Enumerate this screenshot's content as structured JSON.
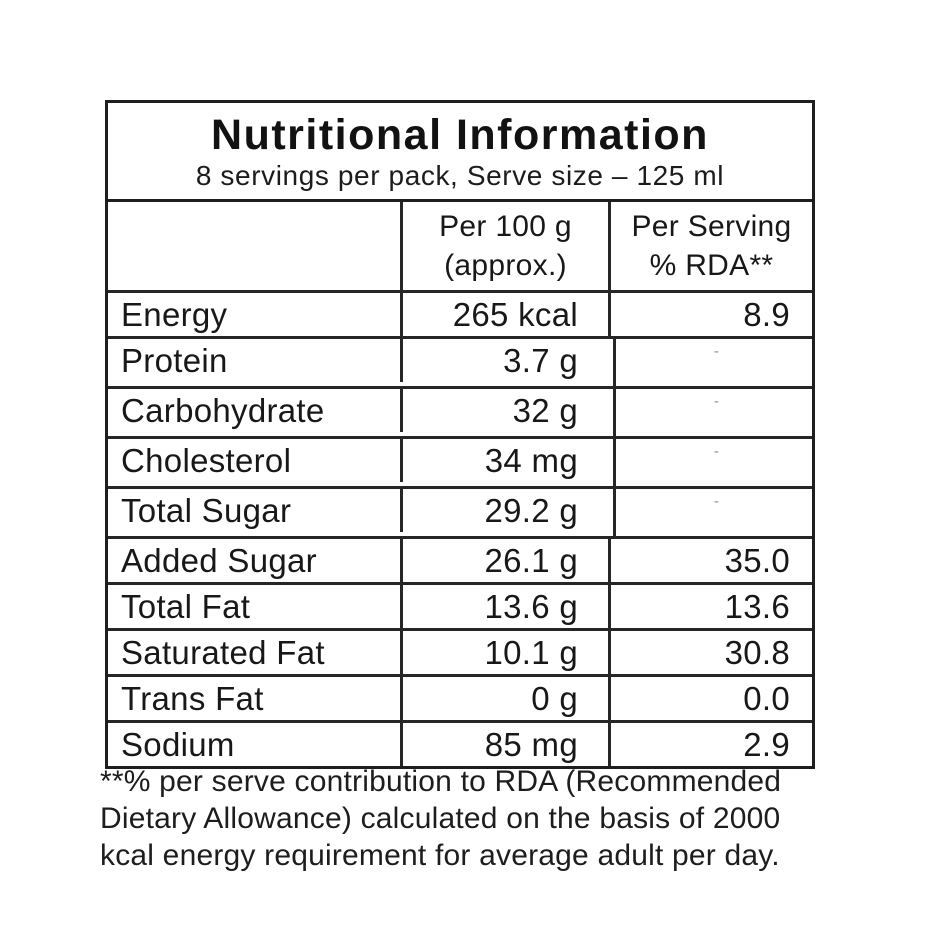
{
  "header": {
    "title": "Nutritional Information",
    "subtitle": "8 servings per pack, Serve size – 125 ml"
  },
  "table": {
    "columns": {
      "col2_line1": "Per 100 g",
      "col2_line2": "(approx.)",
      "col3_line1": "Per Serving",
      "col3_line2": "% RDA**"
    },
    "rows": [
      {
        "label": "Energy",
        "per100": "265 kcal",
        "rda": "8.9"
      },
      {
        "label": "Protein",
        "per100": "3.7 g",
        "rda": "-",
        "rda_muted": true
      },
      {
        "label": "Carbohydrate",
        "per100": "32 g",
        "rda": "-",
        "rda_muted": true
      },
      {
        "label": "Cholesterol",
        "per100": "34 mg",
        "rda": "-",
        "rda_muted": true
      },
      {
        "label": "Total Sugar",
        "per100": "29.2 g",
        "rda": "-",
        "rda_muted": true
      },
      {
        "label": "Added Sugar",
        "per100": "26.1 g",
        "rda": "35.0"
      },
      {
        "label": "Total Fat",
        "per100": "13.6 g",
        "rda": "13.6"
      },
      {
        "label": "Saturated Fat",
        "per100": "10.1 g",
        "rda": "30.8"
      },
      {
        "label": "Trans Fat",
        "per100": "0 g",
        "rda": "0.0"
      },
      {
        "label": "Sodium",
        "per100": "85 mg",
        "rda": "2.9"
      }
    ]
  },
  "footnote": {
    "line1": "**% per serve contribution to RDA (Recommended",
    "line2": "Dietary Allowance) calculated on the basis of 2000",
    "line3": "kcal energy requirement for average adult per day."
  },
  "colors": {
    "border": "#1e1e1e",
    "text": "#181818",
    "muted_dash": "#8e8e8e",
    "background": "#ffffff"
  }
}
